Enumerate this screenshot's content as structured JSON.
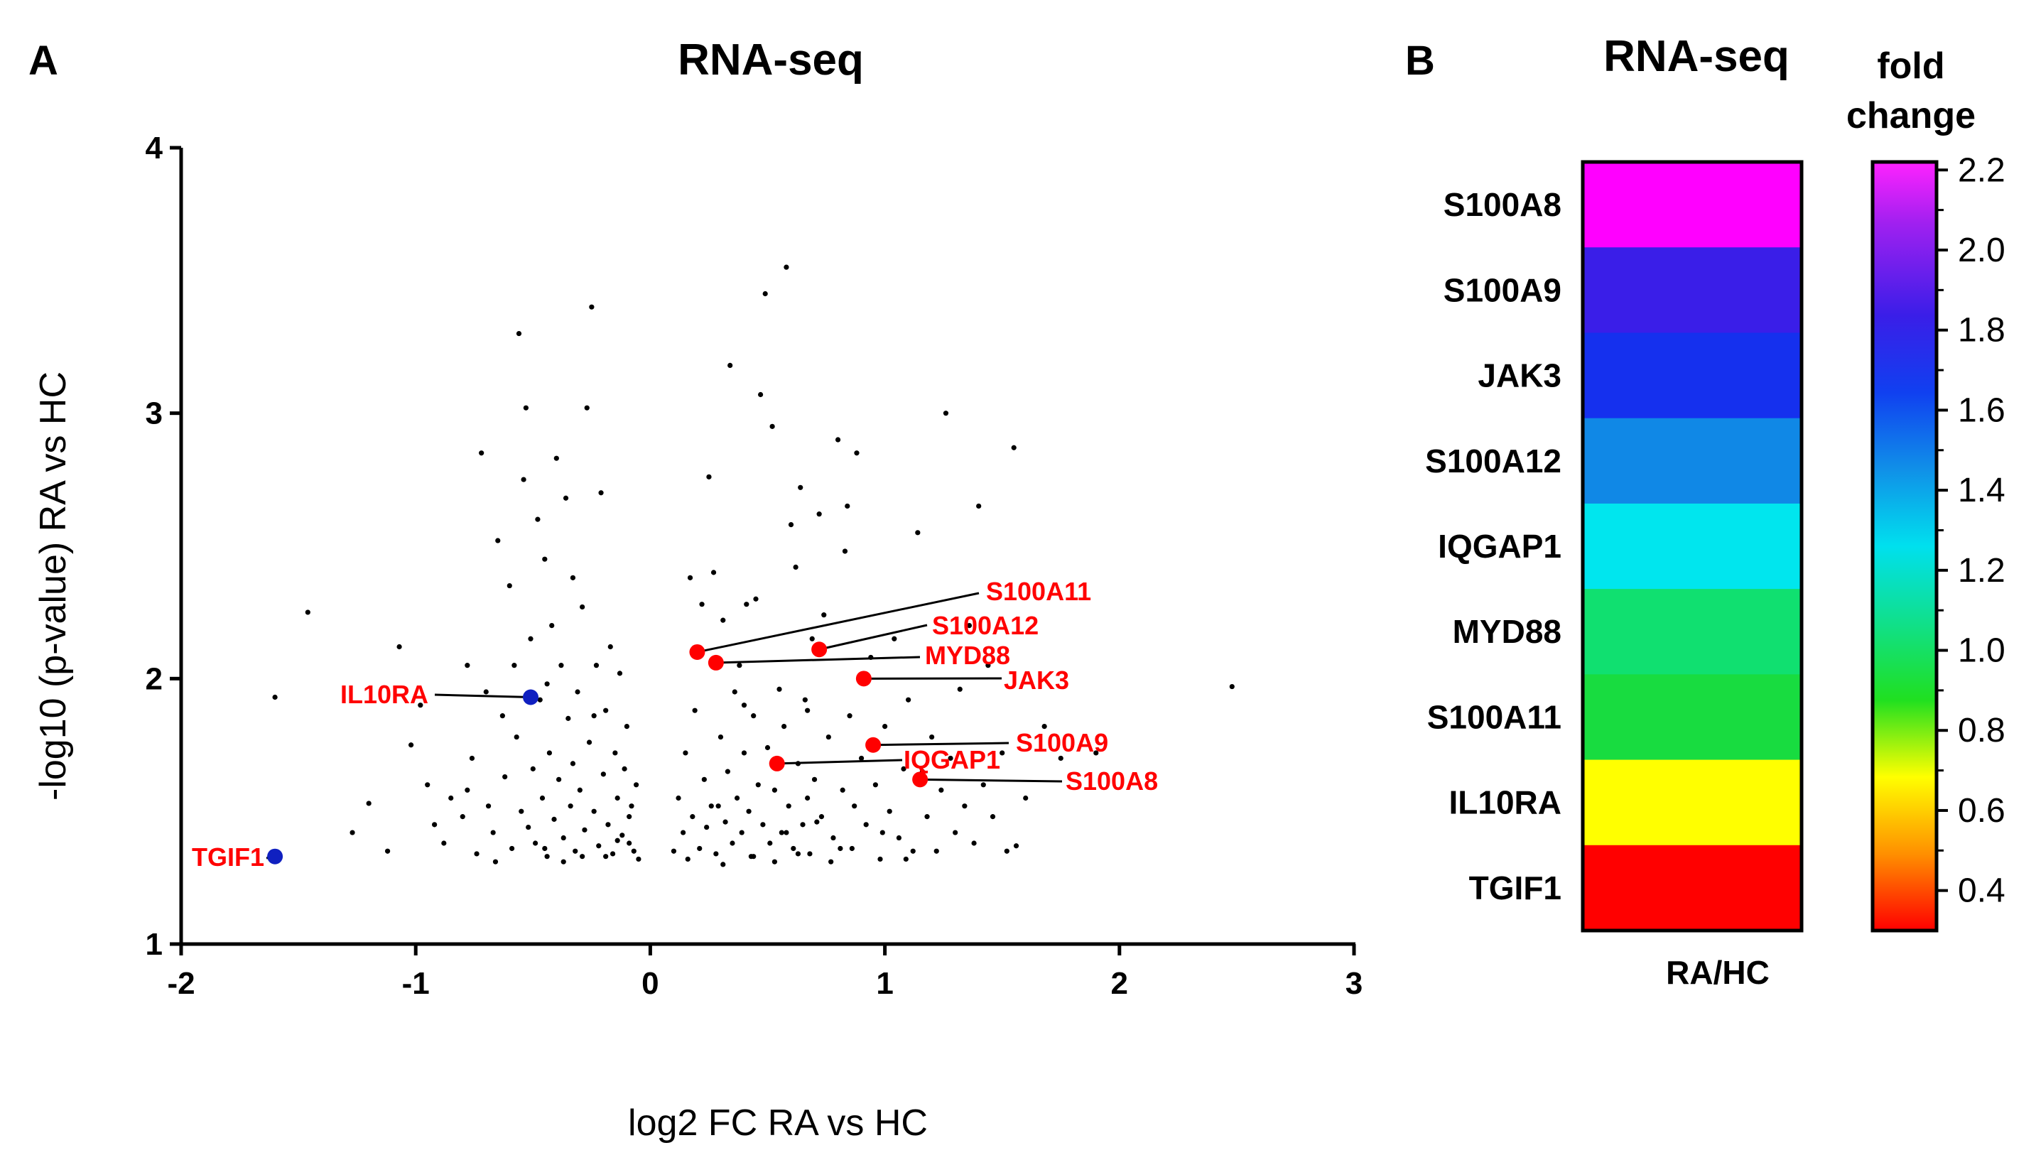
{
  "panel_a": {
    "letter": "A"
  },
  "panel_b": {
    "letter": "B"
  },
  "chart_data": [
    {
      "type": "scatter",
      "title": "RNA-seq",
      "xlabel": "log2 FC RA vs HC",
      "ylabel": "-log10 (p-value)  RA vs HC",
      "xlim": [
        -2,
        3
      ],
      "ylim": [
        1,
        4
      ],
      "xticks": [
        "-2",
        "-1",
        "0",
        "1",
        "2",
        "3"
      ],
      "yticks": [
        "1",
        "2",
        "3",
        "4"
      ],
      "highlighted": [
        {
          "gene": "S100A11",
          "x": 0.2,
          "y": 2.1,
          "color": "#ff0000"
        },
        {
          "gene": "S100A12",
          "x": 0.72,
          "y": 2.11,
          "color": "#ff0000"
        },
        {
          "gene": "MYD88",
          "x": 0.28,
          "y": 2.06,
          "color": "#ff0000"
        },
        {
          "gene": "JAK3",
          "x": 0.91,
          "y": 2.0,
          "color": "#ff0000"
        },
        {
          "gene": "S100A9",
          "x": 0.95,
          "y": 1.75,
          "color": "#ff0000"
        },
        {
          "gene": "IQGAP1",
          "x": 0.54,
          "y": 1.68,
          "color": "#ff0000"
        },
        {
          "gene": "S100A8",
          "x": 1.15,
          "y": 1.62,
          "color": "#ff0000"
        },
        {
          "gene": "IL10RA",
          "x": -0.51,
          "y": 1.93,
          "color": "#1020c0"
        },
        {
          "gene": "TGIF1",
          "x": -1.6,
          "y": 1.33,
          "color": "#1020c0"
        }
      ],
      "background_points": [
        [
          -1.46,
          2.25
        ],
        [
          -1.6,
          1.93
        ],
        [
          -1.2,
          1.53
        ],
        [
          -1.12,
          1.35
        ],
        [
          -1.27,
          1.42
        ],
        [
          -1.07,
          2.12
        ],
        [
          -1.02,
          1.75
        ],
        [
          -0.98,
          1.9
        ],
        [
          -0.95,
          1.6
        ],
        [
          -0.92,
          1.45
        ],
        [
          -0.88,
          1.38
        ],
        [
          -0.85,
          1.55
        ],
        [
          -0.8,
          1.48
        ],
        [
          -0.78,
          2.05
        ],
        [
          -0.76,
          1.7
        ],
        [
          -0.74,
          1.34
        ],
        [
          -0.72,
          2.85
        ],
        [
          -0.7,
          1.95
        ],
        [
          -0.69,
          1.52
        ],
        [
          -0.67,
          1.42
        ],
        [
          -0.65,
          2.52
        ],
        [
          -0.63,
          1.86
        ],
        [
          -0.62,
          1.63
        ],
        [
          -0.6,
          2.35
        ],
        [
          -0.59,
          1.36
        ],
        [
          -0.57,
          1.78
        ],
        [
          -0.56,
          3.3
        ],
        [
          -0.55,
          1.5
        ],
        [
          -0.54,
          2.75
        ],
        [
          -0.53,
          3.02
        ],
        [
          -0.52,
          1.44
        ],
        [
          -0.51,
          2.15
        ],
        [
          -0.5,
          1.66
        ],
        [
          -0.49,
          1.38
        ],
        [
          -0.48,
          2.6
        ],
        [
          -0.47,
          1.92
        ],
        [
          -0.46,
          1.55
        ],
        [
          -0.45,
          2.45
        ],
        [
          -0.44,
          1.33
        ],
        [
          -0.43,
          1.72
        ],
        [
          -0.42,
          2.2
        ],
        [
          -0.41,
          1.47
        ],
        [
          -0.4,
          2.83
        ],
        [
          -0.39,
          1.62
        ],
        [
          -0.38,
          2.05
        ],
        [
          -0.37,
          1.4
        ],
        [
          -0.36,
          2.68
        ],
        [
          -0.35,
          1.85
        ],
        [
          -0.34,
          1.52
        ],
        [
          -0.33,
          2.38
        ],
        [
          -0.32,
          1.35
        ],
        [
          -0.31,
          1.95
        ],
        [
          -0.3,
          1.58
        ],
        [
          -0.29,
          2.27
        ],
        [
          -0.28,
          1.43
        ],
        [
          -0.27,
          3.02
        ],
        [
          -0.26,
          1.76
        ],
        [
          -0.25,
          3.4
        ],
        [
          -0.24,
          1.5
        ],
        [
          -0.23,
          2.05
        ],
        [
          -0.22,
          1.37
        ],
        [
          -0.21,
          2.7
        ],
        [
          -0.2,
          1.64
        ],
        [
          -0.19,
          1.88
        ],
        [
          -0.18,
          1.45
        ],
        [
          -0.17,
          2.12
        ],
        [
          -0.16,
          1.34
        ],
        [
          -0.15,
          1.72
        ],
        [
          -0.14,
          1.55
        ],
        [
          -0.13,
          2.02
        ],
        [
          -0.12,
          1.41
        ],
        [
          -0.11,
          1.66
        ],
        [
          -0.1,
          1.82
        ],
        [
          -0.09,
          1.38
        ],
        [
          -0.08,
          1.52
        ],
        [
          -0.07,
          1.35
        ],
        [
          -0.06,
          1.6
        ],
        [
          -0.05,
          1.32
        ],
        [
          -0.78,
          1.58
        ],
        [
          -0.66,
          1.31
        ],
        [
          -0.58,
          2.05
        ],
        [
          -0.44,
          1.98
        ],
        [
          -0.37,
          1.31
        ],
        [
          -0.33,
          1.68
        ],
        [
          -0.29,
          1.33
        ],
        [
          -0.24,
          1.86
        ],
        [
          -0.19,
          1.33
        ],
        [
          -0.14,
          1.39
        ],
        [
          -0.09,
          1.48
        ],
        [
          -0.45,
          1.36
        ],
        [
          0.1,
          1.35
        ],
        [
          0.12,
          1.55
        ],
        [
          0.14,
          1.42
        ],
        [
          0.15,
          1.72
        ],
        [
          0.17,
          2.38
        ],
        [
          0.18,
          1.48
        ],
        [
          0.19,
          1.88
        ],
        [
          0.21,
          1.36
        ],
        [
          0.22,
          2.28
        ],
        [
          0.23,
          1.62
        ],
        [
          0.24,
          1.44
        ],
        [
          0.25,
          2.76
        ],
        [
          0.26,
          1.52
        ],
        [
          0.27,
          2.4
        ],
        [
          0.28,
          1.34
        ],
        [
          0.3,
          1.78
        ],
        [
          0.31,
          2.22
        ],
        [
          0.32,
          1.46
        ],
        [
          0.33,
          1.65
        ],
        [
          0.34,
          3.18
        ],
        [
          0.35,
          1.38
        ],
        [
          0.36,
          1.95
        ],
        [
          0.37,
          1.55
        ],
        [
          0.38,
          2.05
        ],
        [
          0.39,
          1.42
        ],
        [
          0.4,
          1.72
        ],
        [
          0.41,
          2.28
        ],
        [
          0.42,
          1.5
        ],
        [
          0.43,
          1.33
        ],
        [
          0.44,
          1.86
        ],
        [
          0.45,
          2.3
        ],
        [
          0.46,
          1.6
        ],
        [
          0.47,
          3.07
        ],
        [
          0.48,
          1.45
        ],
        [
          0.49,
          3.45
        ],
        [
          0.5,
          1.74
        ],
        [
          0.51,
          1.38
        ],
        [
          0.52,
          2.95
        ],
        [
          0.53,
          1.58
        ],
        [
          0.55,
          1.96
        ],
        [
          0.56,
          1.42
        ],
        [
          0.57,
          1.82
        ],
        [
          0.58,
          3.55
        ],
        [
          0.59,
          1.52
        ],
        [
          0.6,
          2.58
        ],
        [
          0.61,
          1.36
        ],
        [
          0.62,
          2.42
        ],
        [
          0.63,
          1.68
        ],
        [
          0.64,
          2.72
        ],
        [
          0.65,
          1.45
        ],
        [
          0.66,
          1.92
        ],
        [
          0.67,
          1.55
        ],
        [
          0.68,
          1.34
        ],
        [
          0.69,
          2.15
        ],
        [
          0.7,
          1.62
        ],
        [
          0.72,
          2.62
        ],
        [
          0.73,
          1.48
        ],
        [
          0.74,
          2.24
        ],
        [
          0.76,
          1.78
        ],
        [
          0.78,
          1.4
        ],
        [
          0.8,
          2.9
        ],
        [
          0.82,
          1.58
        ],
        [
          0.83,
          2.48
        ],
        [
          0.84,
          2.65
        ],
        [
          0.85,
          1.86
        ],
        [
          0.86,
          1.36
        ],
        [
          0.88,
          2.85
        ],
        [
          0.9,
          1.7
        ],
        [
          0.92,
          1.45
        ],
        [
          0.94,
          2.08
        ],
        [
          0.96,
          1.6
        ],
        [
          0.98,
          1.32
        ],
        [
          1.0,
          1.82
        ],
        [
          1.02,
          1.5
        ],
        [
          1.04,
          2.15
        ],
        [
          1.06,
          1.4
        ],
        [
          1.08,
          1.66
        ],
        [
          1.1,
          1.92
        ],
        [
          1.12,
          1.35
        ],
        [
          1.14,
          2.55
        ],
        [
          1.18,
          1.48
        ],
        [
          1.2,
          1.78
        ],
        [
          1.22,
          1.35
        ],
        [
          1.24,
          1.58
        ],
        [
          1.26,
          3.0
        ],
        [
          1.28,
          1.7
        ],
        [
          1.3,
          1.42
        ],
        [
          1.32,
          1.96
        ],
        [
          1.34,
          1.52
        ],
        [
          1.36,
          2.2
        ],
        [
          1.38,
          1.38
        ],
        [
          1.4,
          2.65
        ],
        [
          1.42,
          1.6
        ],
        [
          1.44,
          2.05
        ],
        [
          1.46,
          1.48
        ],
        [
          1.5,
          1.72
        ],
        [
          1.52,
          1.35
        ],
        [
          1.55,
          2.87
        ],
        [
          1.56,
          1.37
        ],
        [
          1.6,
          1.55
        ],
        [
          1.68,
          1.82
        ],
        [
          1.75,
          1.7
        ],
        [
          1.9,
          1.72
        ],
        [
          2.48,
          1.97
        ],
        [
          0.16,
          1.32
        ],
        [
          0.29,
          1.52
        ],
        [
          0.44,
          1.33
        ],
        [
          0.58,
          1.42
        ],
        [
          0.67,
          1.88
        ],
        [
          0.77,
          1.31
        ],
        [
          0.87,
          1.52
        ],
        [
          0.99,
          1.42
        ],
        [
          1.09,
          1.32
        ],
        [
          1.16,
          1.65
        ],
        [
          0.31,
          1.3
        ],
        [
          0.4,
          1.9
        ],
        [
          0.53,
          1.31
        ],
        [
          0.63,
          1.34
        ],
        [
          0.71,
          1.46
        ],
        [
          0.81,
          1.36
        ]
      ]
    },
    {
      "type": "heatmap",
      "title": "RNA-seq",
      "column": "RA/HC",
      "rows": [
        "S100A8",
        "S100A9",
        "JAK3",
        "S100A12",
        "IQGAP1",
        "MYD88",
        "S100A11",
        "IL10RA",
        "TGIF1"
      ],
      "values": [
        2.22,
        1.95,
        1.85,
        1.6,
        1.42,
        1.15,
        1.1,
        0.7,
        0.3
      ],
      "colors": [
        "#ff00ff",
        "#3a1ee8",
        "#1530ee",
        "#1088e6",
        "#00e6ee",
        "#10e070",
        "#18dc40",
        "#ffff00",
        "#ff0000"
      ],
      "colorbar": {
        "title_line1": "fold",
        "title_line2": "change",
        "range": [
          0.3,
          2.22
        ],
        "ticks": [
          "2.2",
          "2.0",
          "1.8",
          "1.6",
          "1.4",
          "1.2",
          "1.0",
          "0.8",
          "0.6",
          "0.4"
        ],
        "tick_values": [
          2.2,
          2.0,
          1.8,
          1.6,
          1.4,
          1.2,
          1.0,
          0.8,
          0.6,
          0.4
        ]
      }
    }
  ]
}
